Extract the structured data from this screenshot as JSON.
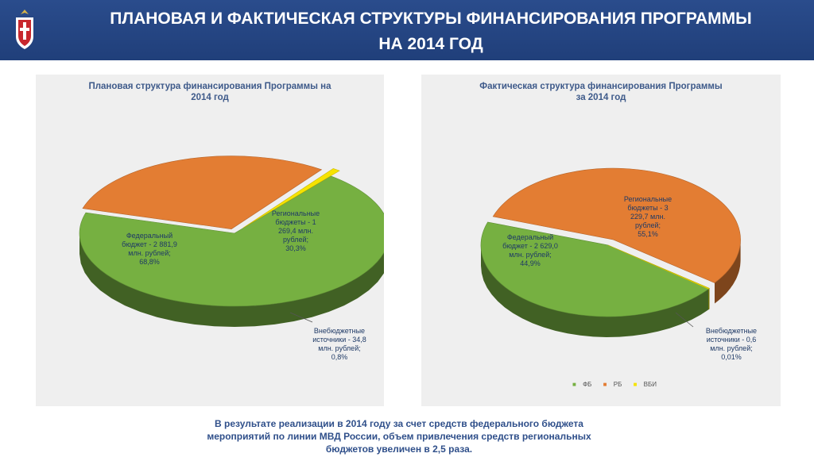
{
  "header": {
    "title_line1": "ПЛАНОВАЯ  И ФАКТИЧЕСКАЯ СТРУКТУРЫ ФИНАНСИРОВАНИЯ ПРОГРАММЫ",
    "title_line2": "НА 2014 ГОД"
  },
  "colors": {
    "fb": "#76b041",
    "rb": "#e37d33",
    "vbi": "#f6e300",
    "header": "#2a4c8c"
  },
  "chart_data": [
    {
      "type": "pie",
      "title": "Плановая структура финансирования Программы на 2014 год",
      "title_lines": [
        "Плановая структура финансирования Программы на",
        "2014 год"
      ],
      "slices": [
        {
          "key": "fb",
          "label_lines": [
            "Федеральный",
            "бюджет - 2 881,9",
            "млн. рублей;",
            "68,8%"
          ],
          "value": 68.8
        },
        {
          "key": "rb",
          "label_lines": [
            "Региональные",
            "бюджеты - 1",
            "269,4 млн.",
            "рублей;",
            "30,3%"
          ],
          "value": 30.3
        },
        {
          "key": "vbi",
          "label_lines": [
            "Внебюджетные",
            "источники - 34,8",
            "млн. рублей;",
            "0,8%"
          ],
          "value": 0.8
        }
      ]
    },
    {
      "type": "pie",
      "title": "Фактическая структура финансирования Программы за 2014 год",
      "title_lines": [
        "Фактическая структура финансирования Программы",
        "за 2014 год"
      ],
      "slices": [
        {
          "key": "fb",
          "label_lines": [
            "Федеральный",
            "бюджет - 2 629,0",
            "млн. рублей;",
            "44,9%"
          ],
          "value": 44.9
        },
        {
          "key": "rb",
          "label_lines": [
            "Региональные",
            "бюджеты - 3",
            "229,7 млн.",
            "рублей;",
            "55,1%"
          ],
          "value": 55.1
        },
        {
          "key": "vbi",
          "label_lines": [
            "Внебюджетные",
            "источники - 0,6",
            "млн. рублей;",
            "0,01%"
          ],
          "value": 0.01
        }
      ],
      "legend": [
        "ФБ",
        "РБ",
        "ВБИ"
      ]
    }
  ],
  "footer": {
    "lines": [
      "В результате реализации в 2014 году за счет средств федерального бюджета",
      "мероприятий по линии МВД России, объем привлечения средств региональных",
      "бюджетов увеличен в 2,5 раза."
    ]
  }
}
